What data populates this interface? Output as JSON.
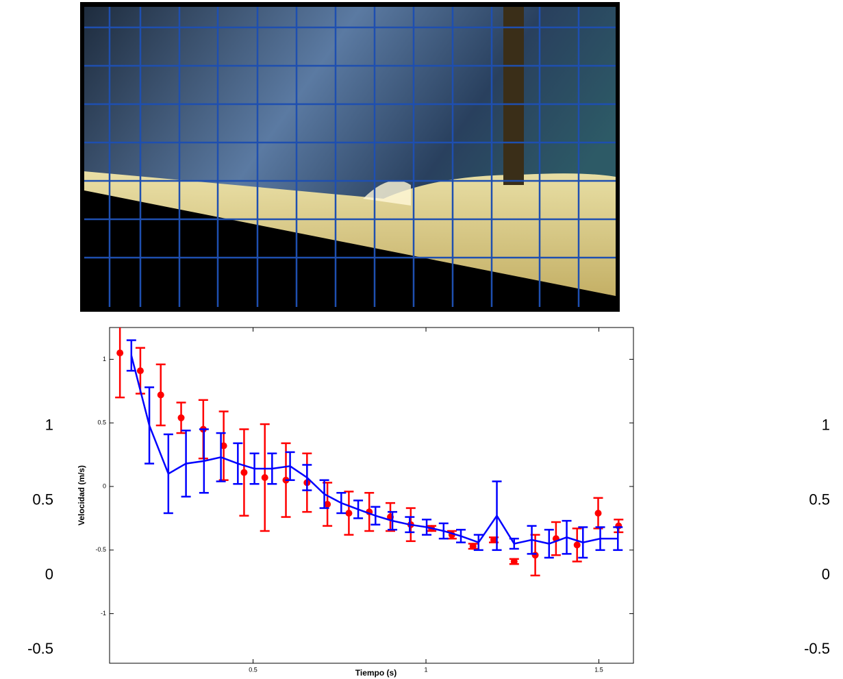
{
  "chart_data": {
    "type": "errorbar",
    "xlabel": "Tiempo (s)",
    "ylabel": "Velocidad (m/s)",
    "xlim": [
      0.085,
      1.6
    ],
    "ylim": [
      -1.39,
      1.25
    ],
    "xticks": [
      0.5,
      1,
      1.5
    ],
    "yticks": [
      -1,
      -0.5,
      0,
      0.5,
      1
    ],
    "y2lim": [
      -0.59,
      1.66
    ],
    "y2ticks": [
      -0.5,
      0,
      0.5,
      1
    ],
    "series": [
      {
        "color": "#ff0000",
        "marker": "circle",
        "line": false,
        "x": [
          0.115,
          0.174,
          0.233,
          0.292,
          0.356,
          0.415,
          0.474,
          0.534,
          0.595,
          0.656,
          0.715,
          0.777,
          0.836,
          0.897,
          0.956,
          1.016,
          1.075,
          1.136,
          1.196,
          1.255,
          1.316,
          1.376,
          1.437,
          1.498,
          1.557
        ],
        "values": [
          1.05,
          0.91,
          0.72,
          0.54,
          0.45,
          0.32,
          0.11,
          0.07,
          0.05,
          0.03,
          -0.14,
          -0.21,
          -0.2,
          -0.24,
          -0.3,
          -0.33,
          -0.38,
          -0.47,
          -0.42,
          -0.59,
          -0.54,
          -0.41,
          -0.46,
          -0.21,
          -0.31
        ],
        "errors": [
          0.35,
          0.18,
          0.24,
          0.12,
          0.23,
          0.27,
          0.34,
          0.42,
          0.29,
          0.23,
          0.17,
          0.17,
          0.15,
          0.11,
          0.13,
          0.02,
          0.03,
          0.02,
          0.02,
          0.02,
          0.16,
          0.13,
          0.13,
          0.12,
          0.05
        ]
      },
      {
        "color": "#0000ff",
        "marker": "none",
        "line": true,
        "x": [
          0.148,
          0.2,
          0.255,
          0.306,
          0.358,
          0.407,
          0.456,
          0.504,
          0.555,
          0.607,
          0.656,
          0.706,
          0.755,
          0.804,
          0.854,
          0.903,
          0.953,
          1.002,
          1.051,
          1.101,
          1.152,
          1.205,
          1.255,
          1.306,
          1.356,
          1.407,
          1.454,
          1.504,
          1.555
        ],
        "values": [
          1.03,
          0.48,
          0.1,
          0.18,
          0.2,
          0.23,
          0.18,
          0.14,
          0.14,
          0.16,
          0.07,
          -0.06,
          -0.13,
          -0.18,
          -0.23,
          -0.27,
          -0.3,
          -0.32,
          -0.35,
          -0.39,
          -0.44,
          -0.23,
          -0.45,
          -0.42,
          -0.45,
          -0.4,
          -0.44,
          -0.41,
          -0.41
        ],
        "errors": [
          0.12,
          0.3,
          0.31,
          0.26,
          0.25,
          0.19,
          0.16,
          0.12,
          0.12,
          0.11,
          0.1,
          0.11,
          0.08,
          0.07,
          0.07,
          0.07,
          0.06,
          0.06,
          0.06,
          0.05,
          0.06,
          0.27,
          0.04,
          0.11,
          0.11,
          0.13,
          0.12,
          0.09,
          0.09
        ]
      }
    ]
  }
}
